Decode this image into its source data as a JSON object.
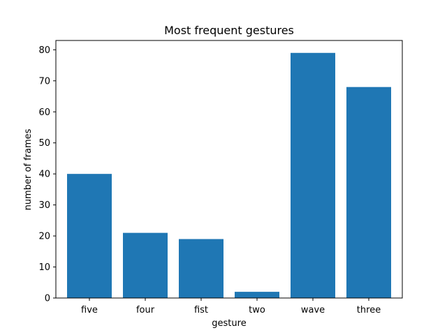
{
  "chart_data": {
    "type": "bar",
    "title": "Most frequent gestures",
    "xlabel": "gesture",
    "ylabel": "number of frames",
    "categories": [
      "five",
      "four",
      "fist",
      "two",
      "wave",
      "three"
    ],
    "values": [
      40,
      21,
      19,
      2,
      79,
      68
    ],
    "ylim": [
      0,
      83
    ],
    "yticks": [
      0,
      10,
      20,
      30,
      40,
      50,
      60,
      70,
      80
    ],
    "bar_color": "#1f77b4",
    "grid": false
  }
}
